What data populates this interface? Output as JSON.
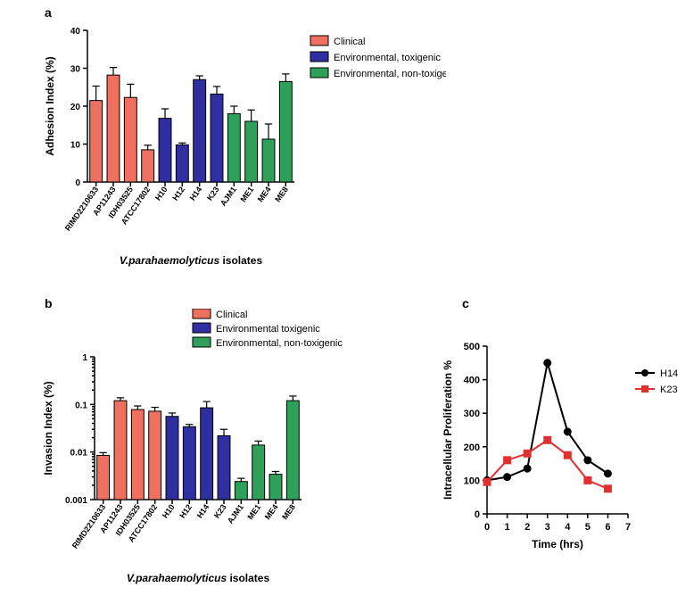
{
  "panels": {
    "a": "a",
    "b": "b",
    "c": "c"
  },
  "colors": {
    "clinical": "#f07060",
    "env_tox": "#2f2fa2",
    "env_nontox": "#2fa05a",
    "line_h14": "#000000",
    "line_k23": "#e03030",
    "bg": "#ffffff",
    "axis": "#000000"
  },
  "legend_groups": {
    "clinical": "Clinical",
    "env_tox": "Environmental, toxigenic",
    "env_tox_b": "Environmental toxigenic",
    "env_nontox": "Environmental, non-toxigenic"
  },
  "panel_a": {
    "type": "bar",
    "title_fontsize": 11,
    "ylabel": "Adhesion Index (%)",
    "xlabel_prefix": "V.parahaemolyticus",
    "xlabel_suffix": " isolates",
    "ylim": [
      0,
      40
    ],
    "yticks": [
      0,
      10,
      20,
      30,
      40
    ],
    "categories": [
      "RIMD2210633",
      "AP11243",
      "IDH03525",
      "ATCC17802",
      "H10",
      "H12",
      "H14",
      "K23",
      "AJM1",
      "ME1",
      "ME4",
      "ME8"
    ],
    "group": [
      "clinical",
      "clinical",
      "clinical",
      "clinical",
      "env_tox",
      "env_tox",
      "env_tox",
      "env_tox",
      "env_nontox",
      "env_nontox",
      "env_nontox",
      "env_nontox"
    ],
    "values": [
      21.5,
      28.2,
      22.3,
      8.5,
      16.8,
      9.8,
      27.0,
      23.2,
      18.0,
      16.0,
      11.3,
      26.5
    ],
    "errors": [
      3.8,
      2.0,
      3.5,
      1.2,
      2.5,
      0.5,
      1.0,
      2.0,
      2.0,
      3.0,
      4.0,
      2.0
    ],
    "bar_width": 0.72,
    "label_fontsize": 9,
    "tick_fontsize": 10
  },
  "panel_b": {
    "type": "bar-log",
    "ylabel": "Invasion Index (%)",
    "xlabel_prefix": "V.parahaemolyticus",
    "xlabel_suffix": " isolates",
    "ylim": [
      0.001,
      1
    ],
    "yticks": [
      0.001,
      0.01,
      0.1,
      1
    ],
    "ytick_labels": [
      "0.001",
      "0.01",
      "0.1",
      "1"
    ],
    "categories": [
      "RIMD2210633",
      "AP11243",
      "IDH03525",
      "ATCC17802",
      "H10",
      "H12",
      "H14",
      "K23",
      "AJM1",
      "ME1",
      "ME4",
      "ME8"
    ],
    "group": [
      "clinical",
      "clinical",
      "clinical",
      "clinical",
      "env_tox",
      "env_tox",
      "env_tox",
      "env_tox",
      "env_nontox",
      "env_nontox",
      "env_nontox",
      "env_nontox"
    ],
    "values": [
      0.0085,
      0.12,
      0.078,
      0.072,
      0.056,
      0.034,
      0.085,
      0.022,
      0.0024,
      0.014,
      0.0034,
      0.12
    ],
    "errors": [
      0.0012,
      0.018,
      0.015,
      0.015,
      0.01,
      0.004,
      0.03,
      0.008,
      0.0004,
      0.003,
      0.0005,
      0.03
    ],
    "bar_width": 0.72,
    "label_fontsize": 9,
    "tick_fontsize": 10
  },
  "panel_c": {
    "type": "line",
    "ylabel": "Intracellular Proliferation %",
    "xlabel": "Time (hrs)",
    "xlim": [
      0,
      7
    ],
    "ylim": [
      0,
      500
    ],
    "xticks": [
      0,
      1,
      2,
      3,
      4,
      5,
      6,
      7
    ],
    "yticks": [
      0,
      100,
      200,
      300,
      400,
      500
    ],
    "series": [
      {
        "name": "H14",
        "color_key": "line_h14",
        "marker": "circle",
        "x": [
          0,
          1,
          2,
          3,
          4,
          5,
          6
        ],
        "y": [
          100,
          110,
          135,
          450,
          245,
          160,
          120
        ]
      },
      {
        "name": "K23",
        "color_key": "line_k23",
        "marker": "square",
        "x": [
          0,
          1,
          2,
          3,
          4,
          5,
          6
        ],
        "y": [
          95,
          160,
          180,
          220,
          175,
          100,
          75
        ]
      }
    ],
    "label_fontsize": 11,
    "tick_fontsize": 11
  }
}
